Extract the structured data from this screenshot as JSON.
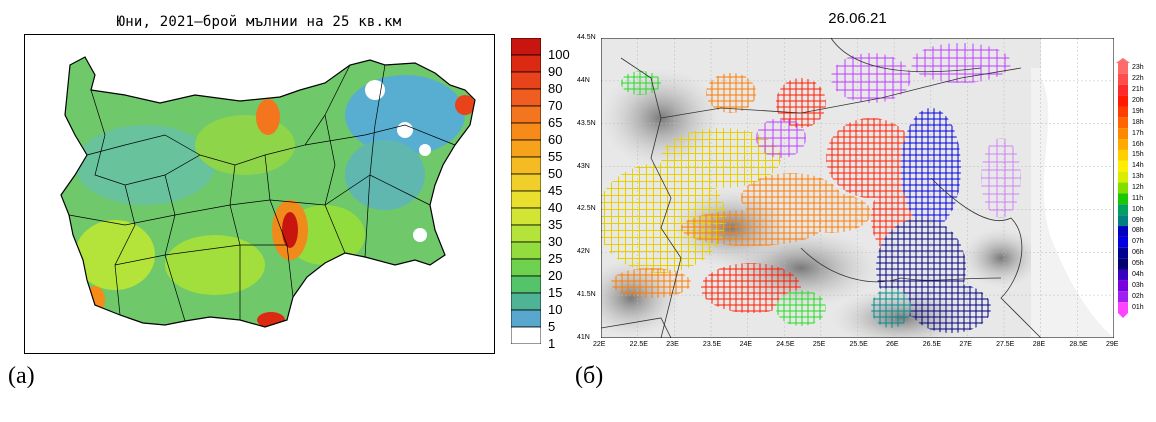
{
  "left_panel": {
    "title": "Юни, 2021–брой мълнии на 25 кв.км",
    "caption": "(а)",
    "colorbar": {
      "labels": [
        "100",
        "90",
        "80",
        "70",
        "65",
        "60",
        "55",
        "50",
        "45",
        "40",
        "35",
        "30",
        "25",
        "20",
        "15",
        "10",
        "5",
        "1"
      ],
      "colors": [
        "#c8150f",
        "#dc2a12",
        "#e8431a",
        "#ef5e20",
        "#f3761e",
        "#f68b1a",
        "#f7a21b",
        "#f5bb22",
        "#f0cf2a",
        "#e8df2e",
        "#d3e534",
        "#b4e33a",
        "#92dc3e",
        "#6fd24f",
        "#55c36a",
        "#4fb496",
        "#57a8cc",
        "#ffffff"
      ]
    }
  },
  "right_panel": {
    "title": "26.06.21",
    "caption": "(б)",
    "lat_labels": [
      "44.5N",
      "44N",
      "43.5N",
      "43N",
      "42.5N",
      "42N",
      "41.5N",
      "41N"
    ],
    "lon_labels": [
      "22E",
      "22.5E",
      "23E",
      "23.5E",
      "24E",
      "24.5E",
      "25E",
      "25.5E",
      "26E",
      "26.5E",
      "27E",
      "27.5E",
      "28E",
      "28.5E",
      "29E"
    ],
    "hour_labels": [
      "23h",
      "22h",
      "21h",
      "20h",
      "19h",
      "18h",
      "17h",
      "16h",
      "15h",
      "14h",
      "13h",
      "12h",
      "11h",
      "10h",
      "09h",
      "08h",
      "07h",
      "06h",
      "05h",
      "04h",
      "03h",
      "02h",
      "01h"
    ],
    "hour_colors": [
      "#ff6a6a",
      "#ff4d4d",
      "#ff2a2a",
      "#ff1a00",
      "#ff3d00",
      "#ff6600",
      "#ff8800",
      "#ffaa00",
      "#ffd000",
      "#ffee00",
      "#d8ee00",
      "#7fe000",
      "#19c800",
      "#00a060",
      "#008080",
      "#0000c0",
      "#0000e0",
      "#000090",
      "#000070",
      "#3a00c0",
      "#7a00e0",
      "#a020f0",
      "#ff44ff"
    ]
  }
}
